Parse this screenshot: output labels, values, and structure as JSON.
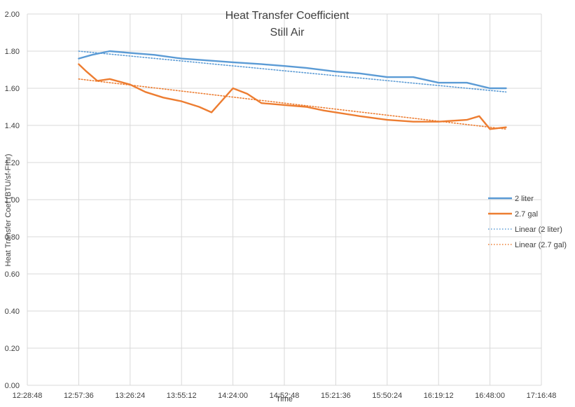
{
  "chart_data": {
    "type": "line",
    "title": "Heat Transfer Coefficient",
    "subtitle": "Still Air",
    "xlabel": "Time",
    "ylabel": "Heat Transfer Coef (BTU/sf-F-hr)",
    "xlim": [
      "12:28:48",
      "17:16:48"
    ],
    "ylim": [
      0,
      2.0
    ],
    "x_ticks": [
      "12:28:48",
      "12:57:36",
      "13:26:24",
      "13:55:12",
      "14:24:00",
      "14:52:48",
      "15:21:36",
      "15:50:24",
      "16:19:12",
      "16:48:00",
      "17:16:48"
    ],
    "y_ticks": [
      "0.00",
      "0.20",
      "0.40",
      "0.60",
      "0.80",
      "1.00",
      "1.20",
      "1.40",
      "1.60",
      "1.80",
      "2.00"
    ],
    "grid": true,
    "legend_position": "right",
    "series": [
      {
        "name": "2 liter",
        "color": "#5b9bd5",
        "style": "solid",
        "x": [
          "12:57:36",
          "13:05:00",
          "13:15:00",
          "13:26:24",
          "13:40:00",
          "13:55:12",
          "14:10:00",
          "14:24:00",
          "14:40:00",
          "14:52:48",
          "15:05:00",
          "15:21:36",
          "15:35:00",
          "15:50:24",
          "16:05:00",
          "16:19:12",
          "16:35:00",
          "16:48:00",
          "16:57:00"
        ],
        "values": [
          1.76,
          1.78,
          1.8,
          1.79,
          1.78,
          1.76,
          1.75,
          1.74,
          1.73,
          1.72,
          1.71,
          1.69,
          1.68,
          1.66,
          1.66,
          1.63,
          1.63,
          1.6,
          1.6
        ]
      },
      {
        "name": "2.7 gal",
        "color": "#ed7d31",
        "style": "solid",
        "x": [
          "12:57:36",
          "13:02:00",
          "13:08:00",
          "13:15:00",
          "13:26:24",
          "13:35:00",
          "13:45:00",
          "13:55:12",
          "14:05:00",
          "14:12:00",
          "14:24:00",
          "14:32:00",
          "14:40:00",
          "14:52:48",
          "15:05:00",
          "15:15:00",
          "15:21:36",
          "15:35:00",
          "15:50:24",
          "16:05:00",
          "16:19:12",
          "16:35:00",
          "16:42:00",
          "16:48:00",
          "16:57:00"
        ],
        "values": [
          1.73,
          1.69,
          1.64,
          1.65,
          1.62,
          1.58,
          1.55,
          1.53,
          1.5,
          1.47,
          1.6,
          1.57,
          1.52,
          1.51,
          1.5,
          1.48,
          1.47,
          1.45,
          1.43,
          1.42,
          1.42,
          1.43,
          1.45,
          1.38,
          1.39
        ]
      },
      {
        "name": "Linear (2 liter)",
        "color": "#5b9bd5",
        "style": "dotted",
        "x": [
          "12:57:36",
          "16:57:00"
        ],
        "values": [
          1.8,
          1.58
        ]
      },
      {
        "name": "Linear (2.7 gal)",
        "color": "#ed7d31",
        "style": "dotted",
        "x": [
          "12:57:36",
          "16:57:00"
        ],
        "values": [
          1.65,
          1.38
        ]
      }
    ]
  }
}
